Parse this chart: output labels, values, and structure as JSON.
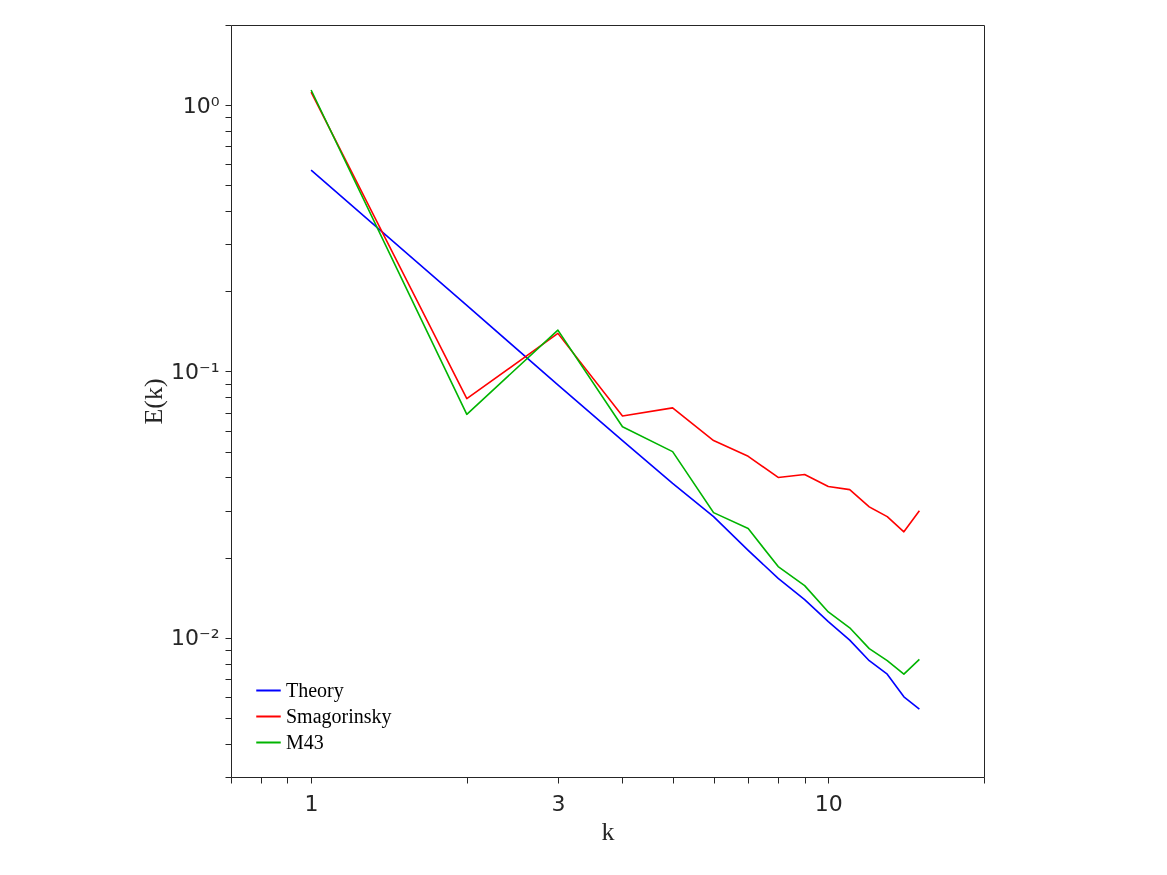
{
  "chart_data": {
    "type": "line",
    "xlabel": "k",
    "ylabel": "E(k)",
    "log": "xy",
    "grid": false,
    "legend": "bottom left",
    "marker": "none",
    "line_style": "solid",
    "x": [
      1,
      2,
      3,
      4,
      5,
      6,
      7,
      8,
      9,
      10,
      11,
      12,
      13,
      14,
      15
    ],
    "xlim": [
      0.7,
      20
    ],
    "xticks": [
      {
        "value": 0.7,
        "label": null
      },
      {
        "value": 0.8,
        "label": null
      },
      {
        "value": 0.9,
        "label": null
      },
      1,
      {
        "value": 2,
        "label": null
      },
      3,
      {
        "value": 4,
        "label": null
      },
      {
        "value": 5,
        "label": null
      },
      {
        "value": 6,
        "label": null
      },
      {
        "value": 7,
        "label": null
      },
      {
        "value": 8,
        "label": null
      },
      {
        "value": 9,
        "label": null
      },
      10,
      {
        "value": 20,
        "label": null
      }
    ],
    "ylim": [
      0.003,
      2
    ],
    "yticks": [
      {
        "value": 0.003,
        "label": null
      },
      {
        "value": 0.004,
        "label": null
      },
      {
        "value": 0.005,
        "label": null
      },
      {
        "value": 0.006,
        "label": null
      },
      {
        "value": 0.007,
        "label": null
      },
      {
        "value": 0.008,
        "label": null
      },
      {
        "value": 0.009,
        "label": null
      },
      {
        "value": 0.01,
        "label": "10⁻²"
      },
      {
        "value": 0.02,
        "label": null
      },
      {
        "value": 0.03,
        "label": null
      },
      {
        "value": 0.04,
        "label": null
      },
      {
        "value": 0.05,
        "label": null
      },
      {
        "value": 0.06,
        "label": null
      },
      {
        "value": 0.07,
        "label": null
      },
      {
        "value": 0.08,
        "label": null
      },
      {
        "value": 0.09,
        "label": null
      },
      {
        "value": 0.1,
        "label": "10⁻¹"
      },
      {
        "value": 0.2,
        "label": null
      },
      {
        "value": 0.3,
        "label": null
      },
      {
        "value": 0.4,
        "label": null
      },
      {
        "value": 0.5,
        "label": null
      },
      {
        "value": 0.6,
        "label": null
      },
      {
        "value": 0.7,
        "label": null
      },
      {
        "value": 0.8,
        "label": null
      },
      {
        "value": 0.9,
        "label": null
      },
      {
        "value": 1,
        "label": "10⁰"
      },
      {
        "value": 2,
        "label": null
      }
    ],
    "series": [
      {
        "name": "Theory",
        "color": "#0000ff",
        "values": [
          0.57,
          0.177,
          0.089,
          0.055,
          0.038,
          0.0285,
          0.0213,
          0.0167,
          0.0139,
          0.0115,
          0.0098,
          0.0082,
          0.0073,
          0.006,
          0.0054
        ]
      },
      {
        "name": "Smagorinsky",
        "color": "#ff0000",
        "values": [
          1.12,
          0.079,
          0.139,
          0.068,
          0.073,
          0.055,
          0.048,
          0.04,
          0.041,
          0.037,
          0.036,
          0.031,
          0.0285,
          0.025,
          0.03
        ]
      },
      {
        "name": "M43",
        "color": "#00b400",
        "values": [
          1.14,
          0.069,
          0.143,
          0.062,
          0.05,
          0.0295,
          0.0257,
          0.0185,
          0.0157,
          0.0125,
          0.0109,
          0.0091,
          0.0082,
          0.0073,
          0.0083
        ]
      }
    ]
  }
}
